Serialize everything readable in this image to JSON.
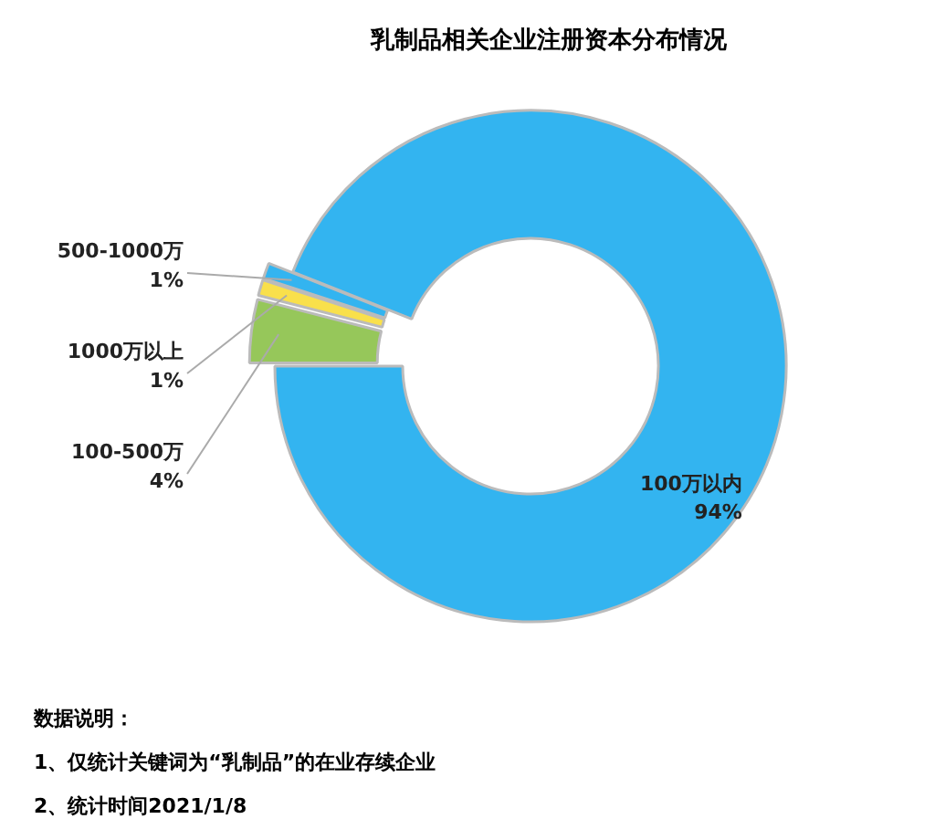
{
  "chart_data": {
    "type": "donut",
    "title": "乳制品相关企业注册资本分布情况",
    "categories": [
      "100-500万",
      "1000万以上",
      "500-1000万",
      "100万以内"
    ],
    "values": [
      4,
      1,
      1,
      94
    ],
    "value_labels": [
      "4%",
      "1%",
      "1%",
      "94%"
    ],
    "colors": [
      "#96c75a",
      "#f9e04b",
      "#33b4f0",
      "#33b4f0"
    ],
    "annotations": [
      "数据说明：",
      "1、仅统计关键词为“乳制品”的在业存续企业",
      "2、统计时间2021/1/8"
    ]
  }
}
